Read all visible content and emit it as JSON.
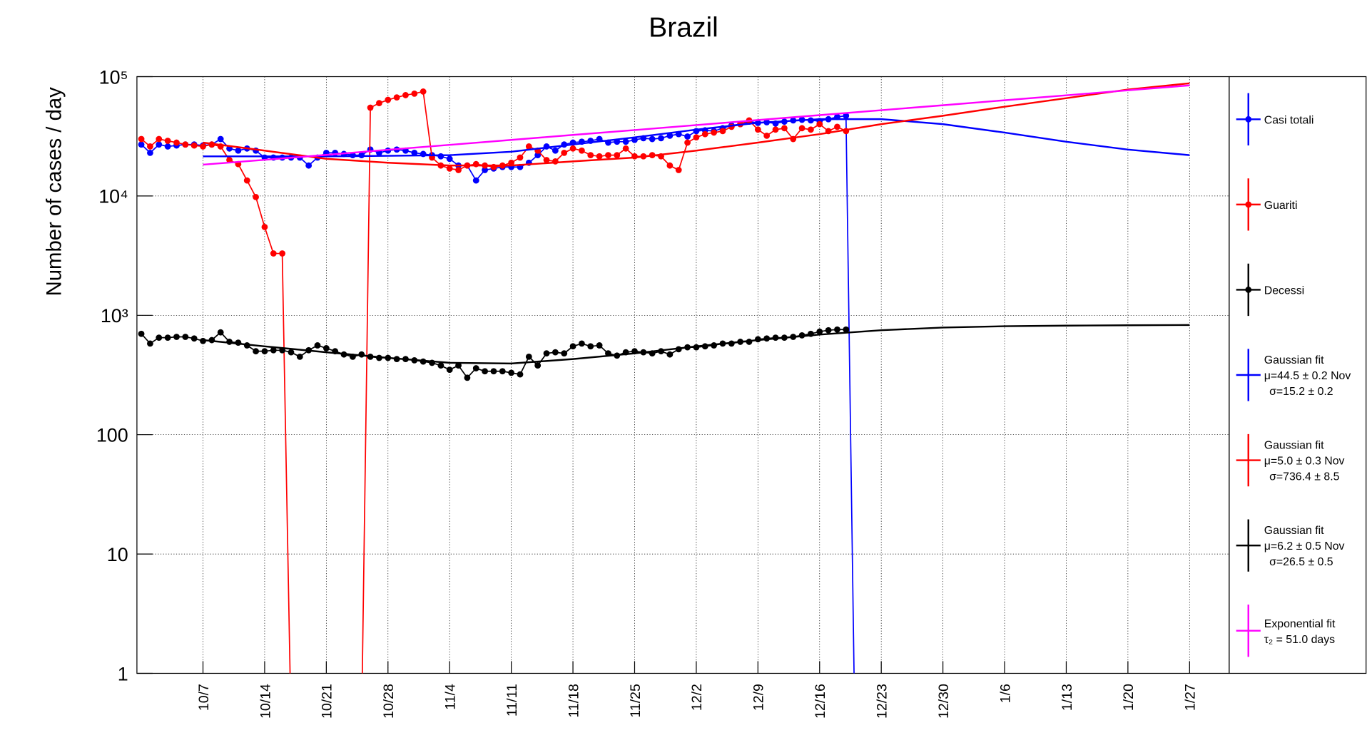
{
  "chart_data": {
    "type": "line",
    "title": "Brazil",
    "y_label": "Number of cases / day",
    "log_y": true,
    "grid": true,
    "legend": "right",
    "ylim": [
      1,
      100000
    ],
    "yticks": [
      1,
      10,
      100,
      {
        "value": 1000,
        "label": "10³"
      },
      {
        "value": 10000,
        "label": "10⁴"
      },
      {
        "value": 100000,
        "label": "10⁵"
      }
    ],
    "categories": [
      null,
      null,
      null,
      null,
      null,
      null,
      null,
      "10/7",
      null,
      null,
      null,
      null,
      null,
      null,
      "10/14",
      null,
      null,
      null,
      null,
      null,
      null,
      "10/21",
      null,
      null,
      null,
      null,
      null,
      null,
      "10/28",
      null,
      null,
      null,
      null,
      null,
      null,
      "11/4",
      null,
      null,
      null,
      null,
      null,
      null,
      "11/11",
      null,
      null,
      null,
      null,
      null,
      null,
      "11/18",
      null,
      null,
      null,
      null,
      null,
      null,
      "11/25",
      null,
      null,
      null,
      null,
      null,
      null,
      "12/2",
      null,
      null,
      null,
      null,
      null,
      null,
      "12/9",
      null,
      null,
      null,
      null,
      null,
      null,
      "12/16",
      null,
      null,
      null,
      null,
      null,
      null,
      "12/23",
      null,
      null,
      null,
      null,
      null,
      null,
      "12/30",
      null,
      null,
      null,
      null,
      null,
      null,
      "1/6",
      null,
      null,
      null,
      null,
      null,
      null,
      "1/13",
      null,
      null,
      null,
      null,
      null,
      null,
      "1/20",
      null,
      null,
      null,
      null,
      null,
      null,
      "1/27",
      null,
      null,
      null,
      null
    ],
    "series": [
      {
        "name": "Casi totali",
        "color": "#0000ff",
        "values": [
          27000,
          23000,
          27000,
          26000,
          26500,
          27000,
          27000,
          26500,
          27000,
          30000,
          25000,
          24000,
          25000,
          24000,
          21000,
          21000,
          21000,
          21000,
          21000,
          18000,
          21000,
          23000,
          23000,
          22500,
          22000,
          22000,
          24500,
          23000,
          24000,
          24500,
          24000,
          23000,
          22500,
          22000,
          21500,
          20500,
          18000,
          18000,
          13500,
          16500,
          17000,
          17500,
          17500,
          17500,
          19000,
          22000,
          26000,
          24000,
          27000,
          28000,
          28500,
          29000,
          30000,
          28000,
          28500,
          28500,
          29500,
          30500,
          30000,
          30500,
          32000,
          33000,
          31500,
          35000,
          35500,
          35000,
          37000,
          39000,
          40000,
          42000,
          41000,
          41500,
          40500,
          42000,
          43000,
          43500,
          43000,
          42500,
          44000,
          46000,
          47000,
          0,
          null,
          null,
          null,
          null,
          null,
          null,
          null,
          null,
          null,
          null,
          null,
          null,
          null,
          null,
          null,
          null,
          null,
          null,
          null,
          null,
          null,
          null,
          null,
          null,
          null,
          null,
          null,
          null,
          null,
          null,
          null,
          null,
          null,
          null,
          null,
          null,
          null,
          null,
          null,
          null,
          null,
          null
        ]
      },
      {
        "name": "Guariti",
        "color": "#ff0000",
        "values": [
          30000,
          26000,
          30000,
          29000,
          28000,
          27000,
          26500,
          26000,
          27000,
          26000,
          20000,
          18500,
          13500,
          9800,
          5500,
          3300,
          3300,
          0,
          0,
          0,
          0,
          0,
          0,
          0,
          0,
          0,
          55000,
          60000,
          64000,
          67000,
          70000,
          72000,
          75000,
          21000,
          18000,
          17000,
          16500,
          18000,
          18500,
          18000,
          17500,
          18000,
          19000,
          21000,
          26000,
          24000,
          20000,
          19500,
          23000,
          25000,
          24000,
          22000,
          21500,
          22000,
          22000,
          25000,
          21500,
          21500,
          22000,
          21500,
          18000,
          16500,
          28000,
          31000,
          33000,
          34000,
          35000,
          38000,
          40000,
          43000,
          36000,
          32000,
          36000,
          37000,
          30000,
          37000,
          36000,
          40000,
          35000,
          38000,
          35000,
          null,
          null,
          null,
          null,
          null,
          null,
          null,
          null,
          null,
          null,
          null,
          null,
          null,
          null,
          null,
          null,
          null,
          null,
          null,
          null,
          null,
          null,
          null,
          null,
          null,
          null,
          null,
          null,
          null,
          null,
          null,
          null,
          null,
          null,
          null,
          null,
          null,
          null,
          null,
          null,
          null,
          null,
          null
        ]
      },
      {
        "name": "Decessi",
        "color": "#000000",
        "values": [
          700,
          580,
          650,
          650,
          660,
          660,
          640,
          610,
          620,
          720,
          600,
          590,
          560,
          500,
          500,
          510,
          510,
          490,
          450,
          510,
          560,
          530,
          500,
          470,
          450,
          470,
          450,
          440,
          440,
          430,
          430,
          420,
          410,
          400,
          380,
          350,
          380,
          300,
          360,
          340,
          340,
          340,
          330,
          320,
          450,
          380,
          480,
          490,
          480,
          550,
          580,
          550,
          560,
          480,
          460,
          490,
          500,
          490,
          480,
          500,
          470,
          520,
          540,
          540,
          550,
          560,
          580,
          580,
          600,
          600,
          630,
          640,
          650,
          650,
          660,
          680,
          700,
          730,
          750,
          760,
          760,
          null,
          null,
          null,
          null,
          null,
          null,
          null,
          null,
          null,
          null,
          null,
          null,
          null,
          null,
          null,
          null,
          null,
          null,
          null,
          null,
          null,
          null,
          null,
          null,
          null,
          null,
          null,
          null,
          null,
          null,
          null,
          null,
          null,
          null,
          null,
          null,
          null,
          null,
          null,
          null,
          null,
          null,
          null
        ]
      },
      {
        "name": "Gaussian fit",
        "params": [
          "μ=44.5 ± 0.2 Nov",
          "σ=15.2 ± 0.2"
        ],
        "color": "#0000ff",
        "x": [
          "10/7",
          "10/14",
          "10/21",
          "10/28",
          "11/4",
          "11/11",
          "11/18",
          "11/25",
          "12/2",
          "12/9",
          "12/16",
          "12/23",
          "12/30",
          "1/6",
          "1/13",
          "1/20",
          "1/27"
        ],
        "values": [
          21500,
          21500,
          21500,
          21700,
          22000,
          23500,
          27000,
          31000,
          36000,
          41000,
          44000,
          44000,
          40000,
          34000,
          28500,
          24500,
          22000
        ]
      },
      {
        "name": "Gaussian fit",
        "params": [
          "μ=5.0 ± 0.3 Nov",
          "σ=736.4 ± 8.5"
        ],
        "color": "#ff0000",
        "x": [
          "10/7",
          "10/14",
          "10/21",
          "10/28",
          "11/4",
          "11/11",
          "11/18",
          "11/25",
          "12/2",
          "12/9",
          "12/16",
          "12/23",
          "12/30",
          "1/6",
          "1/13",
          "1/20",
          "1/27"
        ],
        "values": [
          28000,
          24000,
          20500,
          19000,
          18000,
          18000,
          19500,
          21000,
          24000,
          28000,
          33000,
          40000,
          47000,
          56000,
          66000,
          78000,
          88000
        ]
      },
      {
        "name": "Gaussian fit",
        "params": [
          "μ=6.2 ± 0.5 Nov",
          "σ=26.5 ± 0.5"
        ],
        "color": "#000000",
        "x": [
          "10/7",
          "10/14",
          "10/21",
          "10/28",
          "11/4",
          "11/11",
          "11/18",
          "11/25",
          "12/2",
          "12/9",
          "12/16",
          "12/23",
          "12/30",
          "1/6",
          "1/13",
          "1/20",
          "1/27"
        ],
        "values": [
          620,
          550,
          490,
          440,
          400,
          395,
          430,
          480,
          550,
          620,
          690,
          750,
          790,
          810,
          820,
          825,
          830
        ]
      },
      {
        "name": "Exponential fit",
        "params": [
          "τ₂ = 51.0 days"
        ],
        "color": "#ff00ff",
        "x": [
          "10/7",
          "10/14",
          "10/21",
          "10/28",
          "11/4",
          "11/11",
          "11/18",
          "11/25",
          "12/2",
          "12/9",
          "12/16",
          "12/23",
          "12/30",
          "1/6",
          "1/13",
          "1/20",
          "1/27"
        ],
        "values": [
          18300,
          20100,
          22100,
          24400,
          26800,
          29500,
          32500,
          35700,
          39300,
          43300,
          47600,
          52400,
          57600,
          63400,
          69800,
          76800,
          84500
        ]
      }
    ]
  }
}
